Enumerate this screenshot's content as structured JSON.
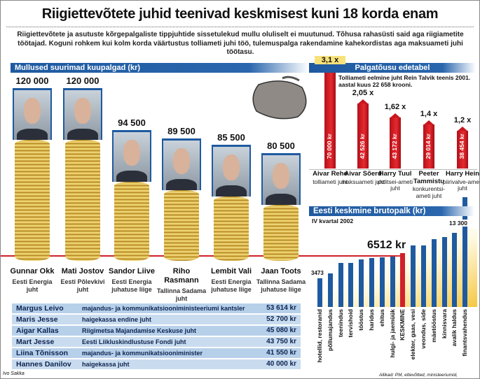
{
  "title": "Riigiettevõtete juhid teenivad keskmisest kuni 18 korda enam",
  "intro": "Riigiettevõtete ja asutuste kõrgepalgaliste tippjuhtide sissetulekud mullu oluliselt ei muutunud. Tõhusa rahasüsti said aga riigiametite töötajad. Koguni rohkem kui kolm korda väärtustus tolliameti juhi töö, tulemuspalga rakendamine kahekordistas aga maksuameti juhi töötasu.",
  "colors": {
    "accent_blue": "#1f5aa0",
    "red": "#d0202a",
    "gold": "#e8c85a"
  },
  "chart_data": [
    {
      "type": "bar",
      "title": "Mullused suurimad kuupalgad (kr)",
      "categories": [
        "Gunnar Okk",
        "Mati Jostov",
        "Sandor Liive",
        "Riho Rasmann",
        "Lembit Vali",
        "Jaan Toots"
      ],
      "roles": [
        "Eesti Energia juht",
        "Eesti Põlevkivi juht",
        "Eesti Energia juhatuse liige",
        "Tallinna Sadama juht",
        "Eesti Energia juhatuse liige",
        "Tallinna Sadama juhatuse liige"
      ],
      "values": [
        120000,
        120000,
        94500,
        89500,
        85500,
        80500
      ],
      "value_labels": [
        "120 000",
        "120 000",
        "94 500",
        "89 500",
        "85 500",
        "80 500"
      ]
    },
    {
      "type": "bar",
      "title": "Palgatõusu edetabel",
      "note": "Tolliameti eelmine juht Rein Talvik teenis 2001. aastal kuus 22 658 krooni.",
      "categories": [
        "Aivar Rehe",
        "Aivar Sõerd",
        "Harry Tuul",
        "Peeter Tammistu",
        "Harry Hein"
      ],
      "roles": [
        "tolliameti juht",
        "maksuameti juht",
        "politsei-ameti juht",
        "konkurentsi-ameti juht",
        "piirivalve-ameti juht"
      ],
      "multipliers": [
        3.1,
        2.05,
        1.62,
        1.4,
        1.2
      ],
      "multiplier_labels": [
        "3,1 x",
        "2,05 x",
        "1,62 x",
        "1,4 x",
        "1,2 x"
      ],
      "salary_labels": [
        "70 000 kr",
        "42 526 kr",
        "43 172 kr",
        "29 014 kr",
        "38 454 kr"
      ]
    },
    {
      "type": "bar",
      "title": "Eesti keskmine brutopalk (kr)",
      "subtitle": "IV kvartal 2002",
      "categories": [
        "hotellid, restoranid",
        "põllumajandus",
        "teenindus",
        "tervishoid",
        "tööstus",
        "haridus",
        "ehitus",
        "hulgi- ja jaemüük",
        "KESKMINE",
        "elekter, gaas, vesi",
        "veondus, side",
        "mäetööstus",
        "kinnisvara",
        "avalik haldus",
        "finantsvahendus"
      ],
      "values": [
        3473,
        4050,
        5300,
        5300,
        5800,
        5900,
        6000,
        6100,
        6512,
        7450,
        7450,
        8200,
        8450,
        8950,
        13300
      ],
      "labels": {
        "min": "3473",
        "average": "6512 kr",
        "max": "13 300"
      },
      "highlight": "KESKMINE"
    }
  ],
  "table": [
    {
      "name": "Margus Leivo",
      "position": "majandus- ja kommunikatsiooniministeeriumi kantsler",
      "salary": "53 614 kr"
    },
    {
      "name": "Maris Jesse",
      "position": "haigekassa endine juht",
      "salary": "52 700 kr"
    },
    {
      "name": "Aigar Kallas",
      "position": "Riigimetsa Majandamise Keskuse juht",
      "salary": "45 080 kr"
    },
    {
      "name": "Mart Jesse",
      "position": "Eesti Liikluskindlustuse Fondi juht",
      "salary": "43 750 kr"
    },
    {
      "name": "Liina Tõnisson",
      "position": "majandus- ja kommunikatsiooniminister",
      "salary": "41 550 kr"
    },
    {
      "name": "Hannes Danilov",
      "position": "haigekassa juht",
      "salary": "40 000 kr"
    }
  ],
  "author": "Ivo Sakka",
  "source": "Allikad: PM, ettevõtted, ministeeriumid, statistikaamet"
}
